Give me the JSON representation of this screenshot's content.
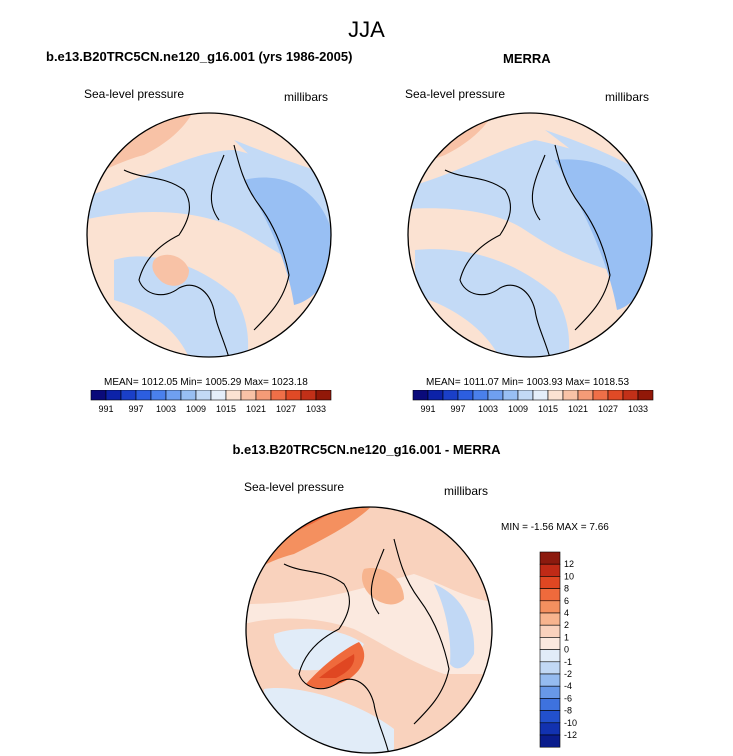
{
  "season_title": "JJA",
  "chart_data": [
    {
      "type": "heatmap",
      "projection": "polar-stereographic",
      "title": "b.e13.B20TRC5CN.ne120_g16.001 (yrs 1986-2005)",
      "left_label": "Sea-level pressure",
      "right_label": "millibars",
      "stats": {
        "mean": "1012.05",
        "min": "1005.29",
        "max": "1023.18"
      },
      "stats_text": "MEAN= 1012.05  Min= 1005.29  Max= 1023.18",
      "colorbar": {
        "orientation": "horizontal",
        "tick_labels": [
          "991",
          "997",
          "1003",
          "1009",
          "1015",
          "1021",
          "1027",
          "1033"
        ],
        "levels": [
          988,
          991,
          994,
          997,
          1000,
          1003,
          1006,
          1009,
          1012,
          1015,
          1018,
          1021,
          1024,
          1027,
          1030,
          1033
        ],
        "colors": [
          "#0a0a7a",
          "#0c22a8",
          "#1a3fc8",
          "#2c5ee0",
          "#4a80ec",
          "#6fa0f0",
          "#98bff3",
          "#c3daf6",
          "#e4eefa",
          "#fbe2d2",
          "#f8c2a6",
          "#f59b77",
          "#ef6f48",
          "#e04a26",
          "#c23018",
          "#921808"
        ]
      }
    },
    {
      "type": "heatmap",
      "projection": "polar-stereographic",
      "title": "MERRA",
      "left_label": "Sea-level pressure",
      "right_label": "millibars",
      "stats": {
        "mean": "1011.07",
        "min": "1003.93",
        "max": "1018.53"
      },
      "stats_text": "MEAN= 1011.07  Min= 1003.93  Max= 1018.53",
      "colorbar": {
        "orientation": "horizontal",
        "tick_labels": [
          "991",
          "997",
          "1003",
          "1009",
          "1015",
          "1021",
          "1027",
          "1033"
        ],
        "levels": [
          988,
          991,
          994,
          997,
          1000,
          1003,
          1006,
          1009,
          1012,
          1015,
          1018,
          1021,
          1024,
          1027,
          1030,
          1033
        ],
        "colors": [
          "#0a0a7a",
          "#0c22a8",
          "#1a3fc8",
          "#2c5ee0",
          "#4a80ec",
          "#6fa0f0",
          "#98bff3",
          "#c3daf6",
          "#e4eefa",
          "#fbe2d2",
          "#f8c2a6",
          "#f59b77",
          "#ef6f48",
          "#e04a26",
          "#c23018",
          "#921808"
        ]
      }
    },
    {
      "type": "heatmap",
      "projection": "polar-stereographic",
      "title": "b.e13.B20TRC5CN.ne120_g16.001 - MERRA",
      "left_label": "Sea-level pressure",
      "right_label": "millibars",
      "stats": {
        "min": "-1.56",
        "max": "7.66"
      },
      "stats_text": "MIN =  -1.56 MAX =   7.66",
      "colorbar": {
        "orientation": "vertical",
        "tick_labels": [
          "12",
          "10",
          "8",
          "6",
          "4",
          "2",
          "1",
          "0",
          "-1",
          "-2",
          "-4",
          "-6",
          "-8",
          "-10",
          "-12"
        ],
        "colors": [
          "#8c1a0e",
          "#c02a16",
          "#e04722",
          "#ef6a3c",
          "#f4905f",
          "#f7b48e",
          "#f9d2bd",
          "#fbe9df",
          "#e1ecf8",
          "#c1d8f5",
          "#95bbf0",
          "#6898e8",
          "#3e72de",
          "#2250cc",
          "#1232b0",
          "#0a1c8c"
        ]
      }
    }
  ]
}
